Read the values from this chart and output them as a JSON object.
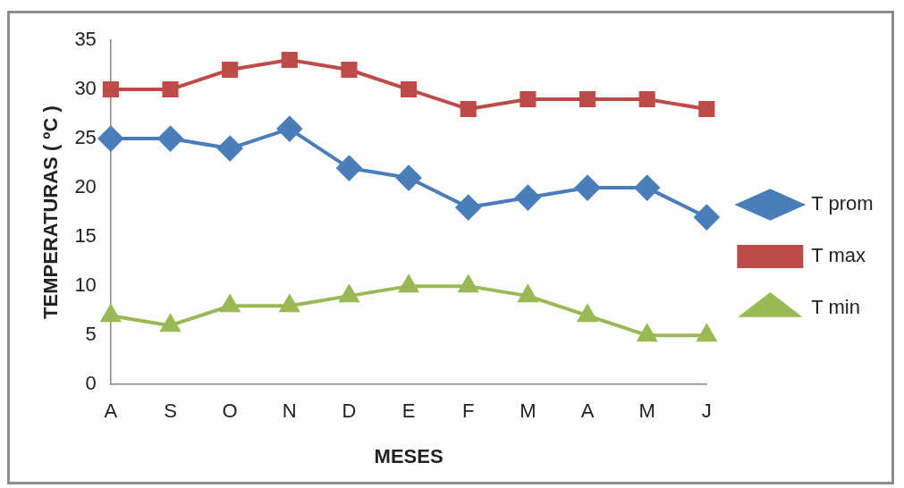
{
  "chart_data": {
    "type": "line",
    "xlabel": "MESES",
    "ylabel": "TEMPERATURAS ( ºC )",
    "categories": [
      "A",
      "S",
      "O",
      "N",
      "D",
      "E",
      "F",
      "M",
      "A",
      "M",
      "J"
    ],
    "series": [
      {
        "name": "T prom",
        "color": "#4a7ebb",
        "marker": "diamond",
        "values": [
          25,
          25,
          24,
          26,
          22,
          21,
          18,
          19,
          20,
          20,
          17
        ]
      },
      {
        "name": "T max",
        "color": "#be4b48",
        "marker": "square",
        "values": [
          30,
          30,
          32,
          33,
          32,
          30,
          28,
          29,
          29,
          29,
          28
        ]
      },
      {
        "name": "T min",
        "color": "#98b954",
        "marker": "triangle",
        "values": [
          7,
          6,
          8,
          8,
          9,
          10,
          10,
          9,
          7,
          5,
          5
        ]
      }
    ],
    "ylim": [
      0,
      35
    ],
    "yticks": [
      0,
      5,
      10,
      15,
      20,
      25,
      30,
      35
    ],
    "grid": false,
    "legend": "right",
    "line_style": "solid"
  }
}
